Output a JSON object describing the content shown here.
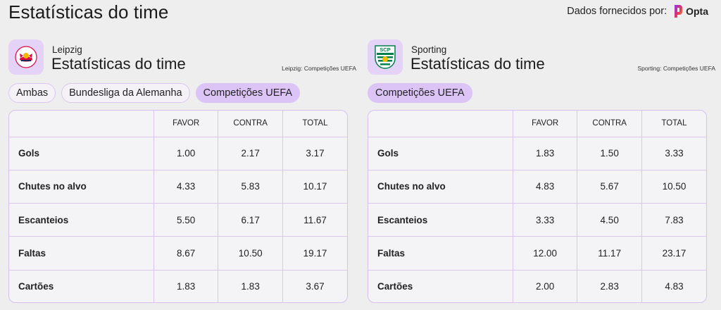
{
  "page": {
    "title": "Estatísticas do time",
    "provider_label": "Dados fornecidos por:",
    "provider_name": "Opta"
  },
  "colors": {
    "background": "#efeeef",
    "crest_bg": "#e5d3f7",
    "chip_active": "#dcc4f6",
    "border": "#d6c2ee",
    "leipzig_red": "#dd0741",
    "sporting_green": "#00804a"
  },
  "panels": [
    {
      "team_name": "Leipzig",
      "heading": "Estatísticas do time",
      "scope_note": "Leipzig: Competições UEFA",
      "crest_icon": "rb-leipzig-crest-icon",
      "chips": [
        "Ambas",
        "Bundesliga da Alemanha",
        "Competições UEFA"
      ],
      "active_chip": "Competições UEFA",
      "columns": [
        "",
        "FAVOR",
        "CONTRA",
        "TOTAL"
      ],
      "rows": [
        {
          "label": "Gols",
          "favor": "1.00",
          "contra": "2.17",
          "total": "3.17"
        },
        {
          "label": "Chutes no alvo",
          "favor": "4.33",
          "contra": "5.83",
          "total": "10.17"
        },
        {
          "label": "Escanteios",
          "favor": "5.50",
          "contra": "6.17",
          "total": "11.67"
        },
        {
          "label": "Faltas",
          "favor": "8.67",
          "contra": "10.50",
          "total": "19.17"
        },
        {
          "label": "Cartões",
          "favor": "1.83",
          "contra": "1.83",
          "total": "3.67"
        }
      ]
    },
    {
      "team_name": "Sporting",
      "heading": "Estatísticas do time",
      "scope_note": "Sporting: Competições UEFA",
      "crest_icon": "sporting-cp-crest-icon",
      "crest_text": "SCP",
      "chips": [
        "Competições UEFA"
      ],
      "active_chip": "Competições UEFA",
      "columns": [
        "",
        "FAVOR",
        "CONTRA",
        "TOTAL"
      ],
      "rows": [
        {
          "label": "Gols",
          "favor": "1.83",
          "contra": "1.50",
          "total": "3.33"
        },
        {
          "label": "Chutes no alvo",
          "favor": "4.83",
          "contra": "5.67",
          "total": "10.50"
        },
        {
          "label": "Escanteios",
          "favor": "3.33",
          "contra": "4.50",
          "total": "7.83"
        },
        {
          "label": "Faltas",
          "favor": "12.00",
          "contra": "11.17",
          "total": "23.17"
        },
        {
          "label": "Cartões",
          "favor": "2.00",
          "contra": "2.83",
          "total": "4.83"
        }
      ]
    }
  ]
}
